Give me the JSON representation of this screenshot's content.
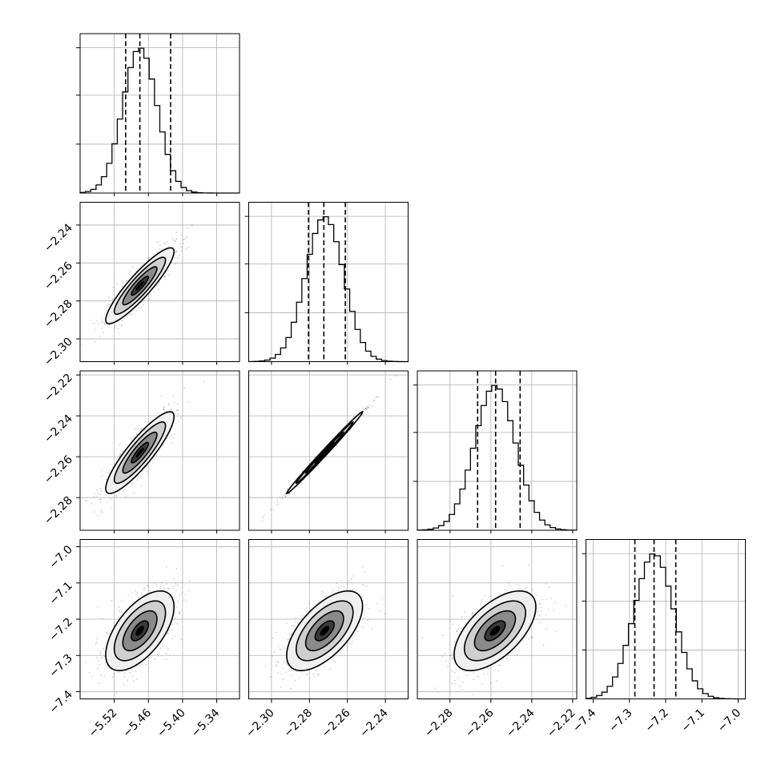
{
  "chart_data": {
    "type": "corner",
    "grid": true,
    "parameters": [
      {
        "range": [
          -5.58,
          -5.3
        ],
        "ticks": [
          -5.52,
          -5.46,
          -5.4,
          -5.34
        ],
        "tick_labels": [
          "−5.52",
          "−5.46",
          "−5.40",
          "−5.34"
        ],
        "quantiles": [
          -5.5,
          -5.475,
          -5.421
        ],
        "mean": -5.475,
        "std": 0.03
      },
      {
        "range": [
          -2.312,
          -2.228
        ],
        "ticks": [
          -2.3,
          -2.28,
          -2.26,
          -2.24
        ],
        "tick_labels": [
          "−2.30",
          "−2.28",
          "−2.26",
          "−2.24"
        ],
        "quantiles": [
          -2.2805,
          -2.2724,
          -2.2611
        ],
        "mean": -2.272,
        "std": 0.01
      },
      {
        "range": [
          -2.296,
          -2.218
        ],
        "ticks": [
          -2.28,
          -2.26,
          -2.24,
          -2.22
        ],
        "tick_labels": [
          "−2.28",
          "−2.26",
          "−2.24",
          "−2.22"
        ],
        "quantiles": [
          -2.2665,
          -2.2577,
          -2.2457
        ],
        "mean": -2.258,
        "std": 0.01
      },
      {
        "range": [
          -7.42,
          -6.98
        ],
        "ticks": [
          -7.4,
          -7.3,
          -7.2,
          -7.1,
          -7.0
        ],
        "tick_labels": [
          "−7.4",
          "−7.3",
          "−7.2",
          "−7.1",
          "−7.0"
        ],
        "quantiles": [
          -7.285,
          -7.232,
          -7.172
        ],
        "mean": -7.232,
        "std": 0.055
      }
    ],
    "y_ticks_per_row": [
      [],
      [
        -2.3,
        -2.28,
        -2.26,
        -2.24
      ],
      [
        -2.28,
        -2.26,
        -2.24,
        -2.22
      ],
      [
        -7.4,
        -7.3,
        -7.2,
        -7.1,
        -7.0
      ]
    ],
    "y_tick_labels_per_row": [
      [],
      [
        "−2.30",
        "−2.28",
        "−2.26",
        "−2.24"
      ],
      [
        "−2.28",
        "−2.26",
        "−2.24",
        "−2.22"
      ],
      [
        "−7.4",
        "−7.3",
        "−7.2",
        "−7.1",
        "−7.0"
      ]
    ],
    "correlations": {
      "1-0": 0.9,
      "2-0": 0.88,
      "2-1": 0.995,
      "3-0": 0.6,
      "3-1": 0.62,
      "3-2": 0.6
    },
    "histogram_bins": 30,
    "scatter_samples": 700,
    "contour_levels_sigma": [
      0.5,
      1.0,
      1.5,
      2.0
    ],
    "colors": {
      "line": "#000000",
      "points": "#000000",
      "grid": "#b0b0b0",
      "background": "#ffffff"
    }
  }
}
